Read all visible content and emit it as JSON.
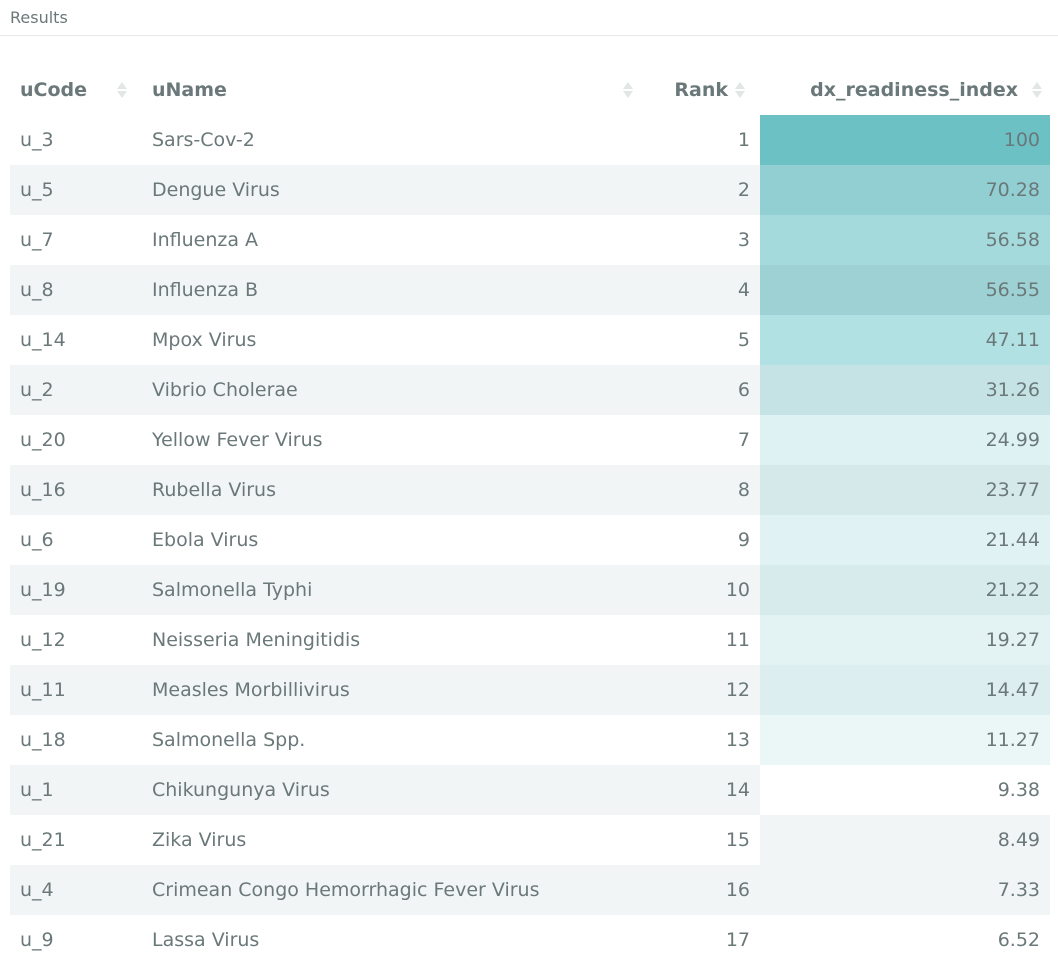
{
  "panel": {
    "title": "Results"
  },
  "table": {
    "columns": [
      "uCode",
      "uName",
      "Rank",
      "dx_readiness_index"
    ],
    "rows": [
      {
        "code": "u_3",
        "name": "Sars-Cov-2",
        "rank": "1",
        "score": "100",
        "shade": "#6cc1c5"
      },
      {
        "code": "u_5",
        "name": "Dengue Virus",
        "rank": "2",
        "score": "70.28",
        "shade": "#92cfd2"
      },
      {
        "code": "u_7",
        "name": "Influenza A",
        "rank": "3",
        "score": "56.58",
        "shade": "#a4dadc"
      },
      {
        "code": "u_8",
        "name": "Influenza B",
        "rank": "4",
        "score": "56.55",
        "shade": "#9dd1d3"
      },
      {
        "code": "u_14",
        "name": "Mpox Virus",
        "rank": "5",
        "score": "47.11",
        "shade": "#b1e1e3"
      },
      {
        "code": "u_2",
        "name": "Vibrio Cholerae",
        "rank": "6",
        "score": "31.26",
        "shade": "#c5e3e5"
      },
      {
        "code": "u_20",
        "name": "Yellow Fever Virus",
        "rank": "7",
        "score": "24.99",
        "shade": "#dff2f3"
      },
      {
        "code": "u_16",
        "name": "Rubella Virus",
        "rank": "8",
        "score": "23.77",
        "shade": "#d6e9ea"
      },
      {
        "code": "u_6",
        "name": "Ebola Virus",
        "rank": "9",
        "score": "21.44",
        "shade": "#e0f2f3"
      },
      {
        "code": "u_19",
        "name": "Salmonella Typhi",
        "rank": "10",
        "score": "21.22",
        "shade": "#d8ebec"
      },
      {
        "code": "u_12",
        "name": "Neisseria Meningitidis",
        "rank": "11",
        "score": "19.27",
        "shade": "#e3f3f4"
      },
      {
        "code": "u_11",
        "name": "Measles Morbillivirus",
        "rank": "12",
        "score": "14.47",
        "shade": "#dceeef"
      },
      {
        "code": "u_18",
        "name": "Salmonella Spp.",
        "rank": "13",
        "score": "11.27",
        "shade": "#ebf7f7"
      },
      {
        "code": "u_1",
        "name": "Chikungunya Virus",
        "rank": "14",
        "score": "9.38",
        "shade": "#ffffff"
      },
      {
        "code": "u_21",
        "name": "Zika Virus",
        "rank": "15",
        "score": "8.49",
        "shade": "#f2f5f5"
      },
      {
        "code": "u_4",
        "name": "Crimean Congo Hemorrhagic Fever Virus",
        "rank": "16",
        "score": "7.33",
        "shade": "#f2f5f5"
      },
      {
        "code": "u_9",
        "name": "Lassa Virus",
        "rank": "17",
        "score": "6.52",
        "shade": "#ffffff"
      }
    ]
  }
}
